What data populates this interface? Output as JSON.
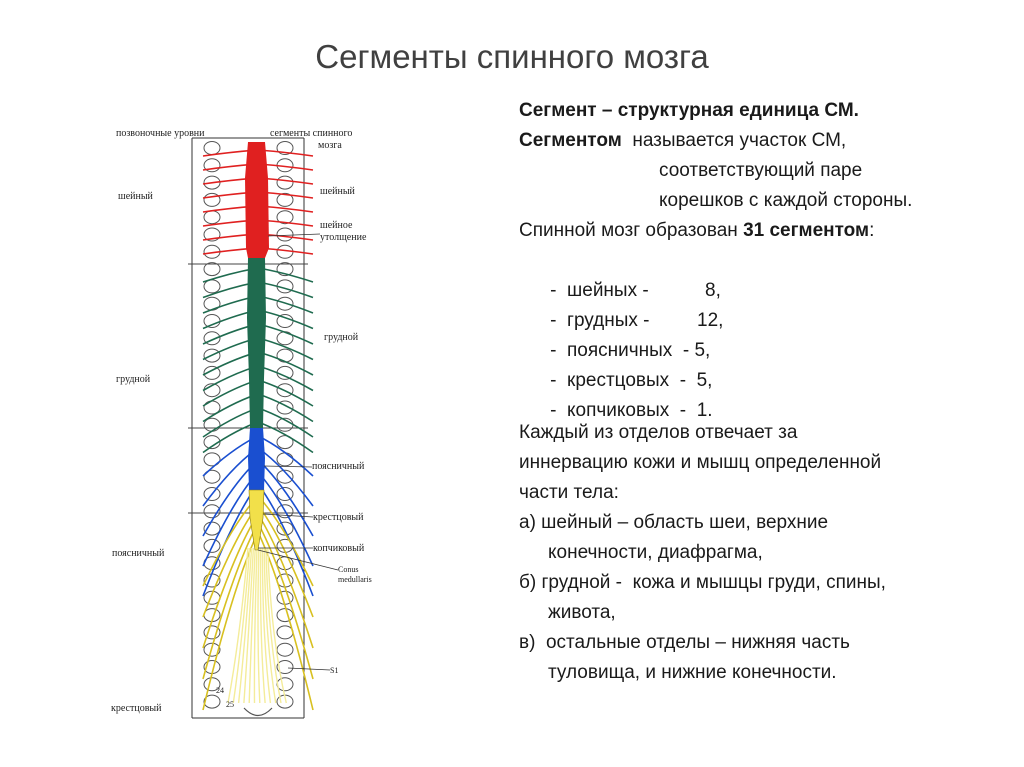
{
  "title": "Сегменты спинного мозга",
  "diagram": {
    "header_left": "позвоночные уровни",
    "header_right_line1": "сегменты спинного",
    "header_right_line2": "мозга",
    "left_labels": {
      "cervical": "шейный",
      "thoracic": "грудной",
      "lumbar": "поясничный",
      "sacral": "крестцовый"
    },
    "right_labels": {
      "cervical": "шейный",
      "enlargement_line1": "шейное",
      "enlargement_line2": "утолщение",
      "thoracic": "грудной",
      "lumbar": "поясничный",
      "sacral": "крестцовый",
      "coccygeal": "копчиковый",
      "conus_line1": "Conus",
      "conus_line2": "medullaris",
      "s1": "S1"
    },
    "vertebra_numbers": {
      "v24": "24",
      "v25": "25"
    },
    "colors": {
      "cervical": "#e02020",
      "thoracic": "#1f6b4f",
      "lumbar": "#1a4fd0",
      "sacral": "#f2e04a",
      "coccygeal_roots": "#f4ec9a"
    }
  },
  "text": {
    "def_bold": "Сегмент – структурная единица СМ.",
    "line2_bold": "Сегментом",
    "line2_rest": "  называется участок СМ,",
    "line3": "соответствующий паре",
    "line4": "корешков с каждой стороны.",
    "line5_start": "Спинной мозг образован ",
    "line5_bold": "31 сегментом",
    "line5_end": ":",
    "counts": [
      {
        "name": "-  шейных -",
        "value": "8,"
      },
      {
        "name": "-  грудных -",
        "value": "12,"
      },
      {
        "name": "-  поясничных  - 5,",
        "value": ""
      },
      {
        "name": "-  крестцовых  -  5,",
        "value": ""
      },
      {
        "name": "-  копчиковых  -  1.",
        "value": ""
      }
    ],
    "p2_line1": "Каждый из отделов отвечает за",
    "p2_line2": "иннервацию кожи и мышц определенной",
    "p2_line3": "части тела:",
    "a_line1": "а) шейный – область шеи, верхние",
    "a_line2": "конечности, диафрагма,",
    "b_line1": "б) грудной -  кожа и мышцы груди, спины,",
    "b_line2": "живота,",
    "c_line1": "в)  остальные отделы – нижняя часть",
    "c_line2": "туловища, и нижние конечности."
  }
}
